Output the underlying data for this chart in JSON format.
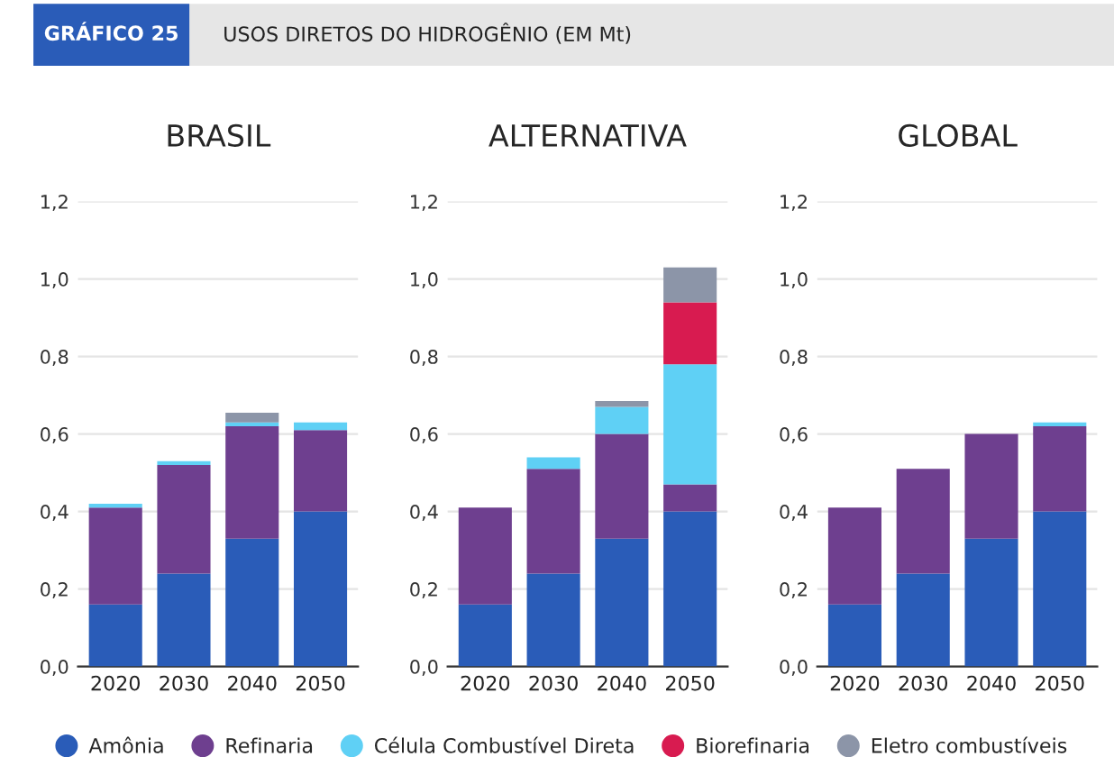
{
  "chart_data": [
    {
      "type": "bar",
      "title": "BRASIL",
      "annotations": [
        "GRÁFICO 25",
        "USOS DIRETOS DO HIDROGÊNIO (EM Mt)"
      ],
      "categories": [
        "2020",
        "2030",
        "2040",
        "2050"
      ],
      "stacked": true,
      "ylim": [
        0,
        1.2
      ],
      "yticks": [
        {
          "value": 0,
          "label": "0,0"
        },
        {
          "value": 0.2,
          "label": "0,2"
        },
        {
          "value": 0.4,
          "label": "0,4"
        },
        {
          "value": 0.6,
          "label": "0,6"
        },
        {
          "value": 0.8,
          "label": "0,8"
        },
        {
          "value": 1.0,
          "label": "1,0"
        },
        {
          "value": 1.2,
          "label": "1,2"
        }
      ],
      "grid": "y",
      "legend": "bottom",
      "series": [
        {
          "name": "Amônia",
          "color": "#2a5cb8",
          "values": [
            0.16,
            0.24,
            0.33,
            0.4
          ]
        },
        {
          "name": "Refinaria",
          "color": "#6e3f8f",
          "values": [
            0.25,
            0.28,
            0.29,
            0.21
          ]
        },
        {
          "name": "Célula Combustível Direta",
          "color": "#5fd0f5",
          "values": [
            0.01,
            0.01,
            0.01,
            0.02
          ]
        },
        {
          "name": "Biorefinaria",
          "color": "#d81b50",
          "values": [
            0,
            0,
            0,
            0
          ]
        },
        {
          "name": "Eletro combustíveis",
          "color": "#8c95a8",
          "values": [
            0,
            0,
            0.025,
            0
          ]
        }
      ]
    },
    {
      "type": "bar",
      "title": "ALTERNATIVA",
      "categories": [
        "2020",
        "2030",
        "2040",
        "2050"
      ],
      "stacked": true,
      "ylim": [
        0,
        1.2
      ],
      "yticks": [
        {
          "value": 0,
          "label": "0,0"
        },
        {
          "value": 0.2,
          "label": "0,2"
        },
        {
          "value": 0.4,
          "label": "0,4"
        },
        {
          "value": 0.6,
          "label": "0,6"
        },
        {
          "value": 0.8,
          "label": "0,8"
        },
        {
          "value": 1.0,
          "label": "1,0"
        },
        {
          "value": 1.2,
          "label": "1,2"
        }
      ],
      "grid": "y",
      "series": [
        {
          "color": "#2a5cb8",
          "values": [
            0.16,
            0.24,
            0.33,
            0.4
          ]
        },
        {
          "color": "#6e3f8f",
          "values": [
            0.25,
            0.27,
            0.27,
            0.07
          ]
        },
        {
          "color": "#5fd0f5",
          "values": [
            0,
            0.03,
            0.07,
            0.31
          ]
        },
        {
          "color": "#d81b50",
          "values": [
            0,
            0,
            0,
            0.16
          ]
        },
        {
          "color": "#8c95a8",
          "values": [
            0,
            0,
            0.015,
            0.09
          ]
        }
      ]
    },
    {
      "type": "bar",
      "title": "GLOBAL",
      "categories": [
        "2020",
        "2030",
        "2040",
        "2050"
      ],
      "stacked": true,
      "ylim": [
        0,
        1.2
      ],
      "yticks": [
        {
          "value": 0,
          "label": "0,0"
        },
        {
          "value": 0.2,
          "label": "0,2"
        },
        {
          "value": 0.4,
          "label": "0,4"
        },
        {
          "value": 0.6,
          "label": "0,6"
        },
        {
          "value": 0.8,
          "label": "0,8"
        },
        {
          "value": 1.0,
          "label": "1,0"
        },
        {
          "value": 1.2,
          "label": "1,2"
        }
      ],
      "grid": "y",
      "series": [
        {
          "color": "#2a5cb8",
          "values": [
            0.16,
            0.24,
            0.33,
            0.4
          ]
        },
        {
          "color": "#6e3f8f",
          "values": [
            0.25,
            0.27,
            0.27,
            0.22
          ]
        },
        {
          "color": "#5fd0f5",
          "values": [
            0,
            0,
            0,
            0.01
          ]
        },
        {
          "color": "#d81b50",
          "values": [
            0,
            0,
            0,
            0
          ]
        },
        {
          "color": "#8c95a8",
          "values": [
            0,
            0,
            0,
            0
          ]
        }
      ]
    }
  ]
}
